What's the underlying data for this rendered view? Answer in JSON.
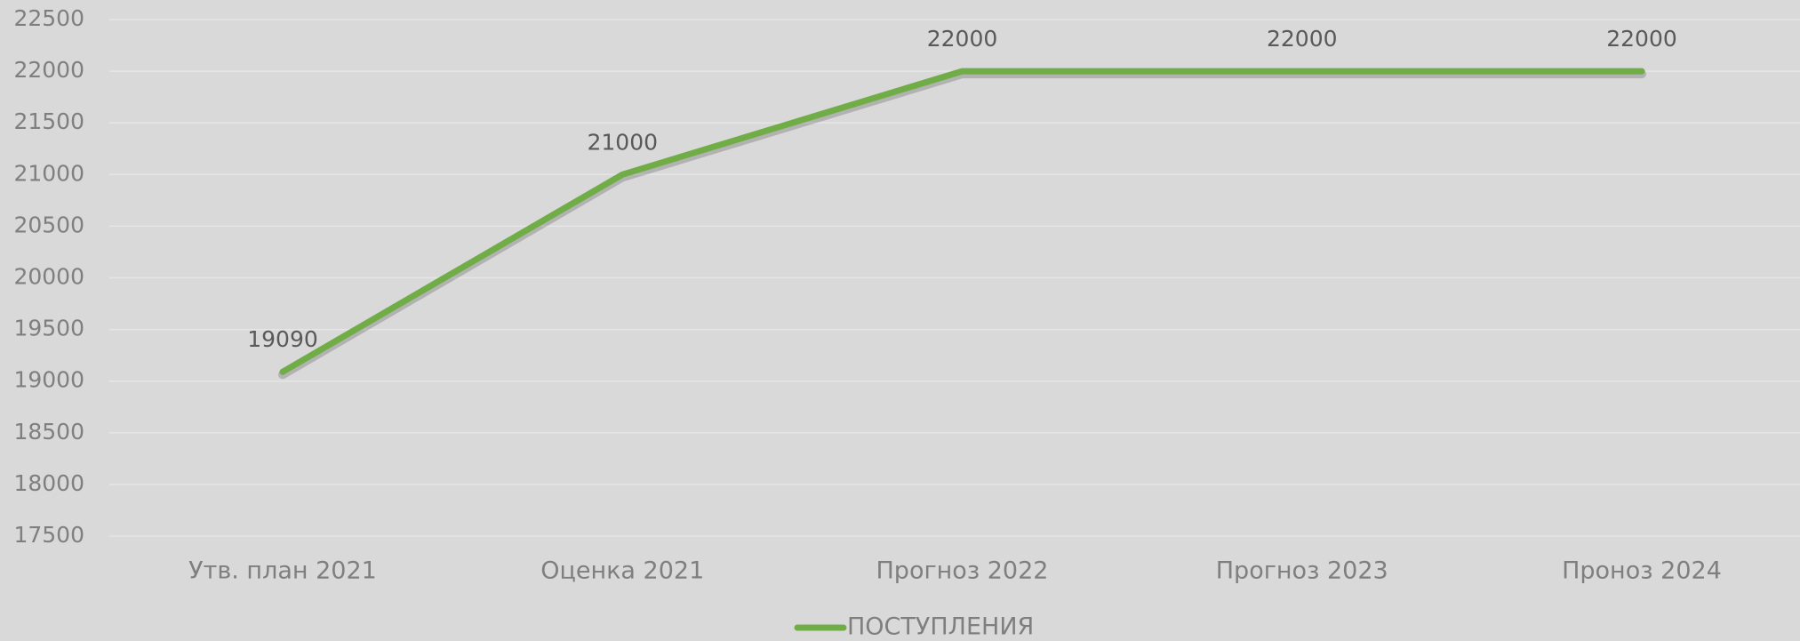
{
  "chart_data": {
    "type": "line",
    "categories": [
      "Утв. план 2021",
      "Оценка 2021",
      "Прогноз 2022",
      "Прогноз 2023",
      "Проноз 2024"
    ],
    "series": [
      {
        "name": "ПОСТУПЛЕНИЯ",
        "color": "#70ad47",
        "values": [
          19090,
          21000,
          22000,
          22000,
          22000
        ]
      }
    ],
    "ylim": [
      17500,
      22500
    ],
    "yticks": [
      17500,
      18000,
      18500,
      19000,
      19500,
      20000,
      20500,
      21000,
      21500,
      22000,
      22500
    ],
    "grid": true,
    "legend": "bottom"
  }
}
